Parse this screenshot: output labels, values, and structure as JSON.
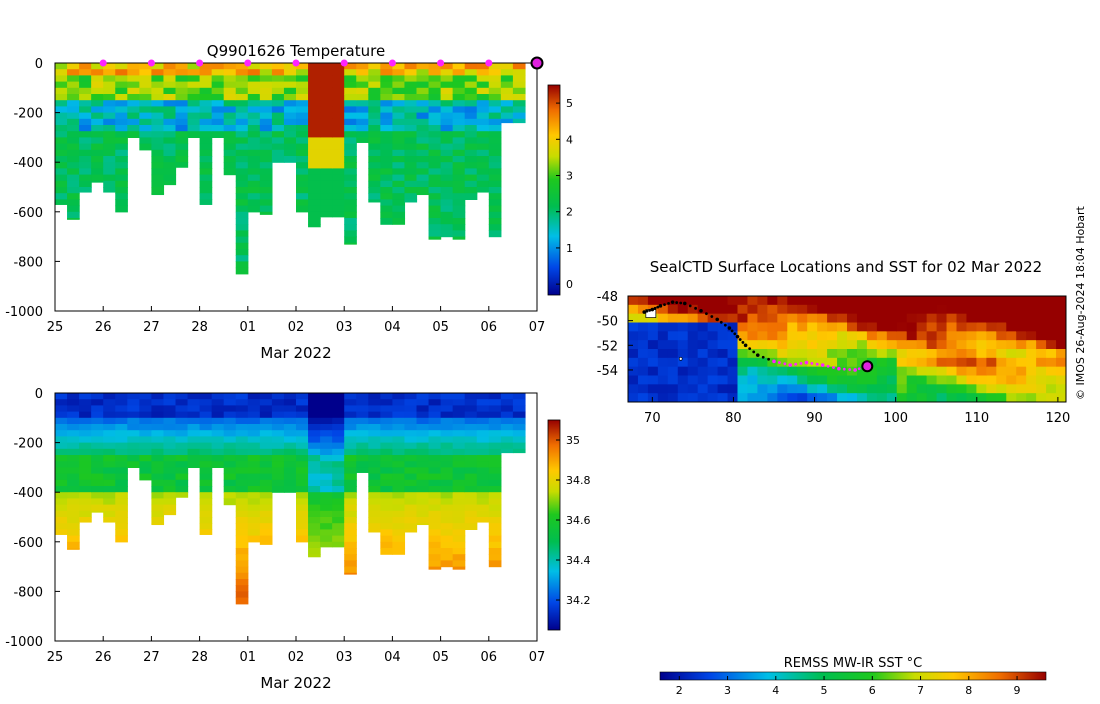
{
  "credit": "© IMOS 26-Aug-2024 18:04 Hobart",
  "chart_data": [
    {
      "type": "heatmap",
      "title": "Q9901626  Temperature",
      "xlabel": "Mar 2022",
      "ylabel": "",
      "x_ticks": [
        "25",
        "26",
        "27",
        "28",
        "01",
        "02",
        "03",
        "04",
        "05",
        "06",
        "07"
      ],
      "y_ticks": [
        "0",
        "-200",
        "-400",
        "-600",
        "-800",
        "-1000"
      ],
      "xlim_days": [
        0,
        10
      ],
      "ylim": [
        -1000,
        0
      ],
      "colorbar": {
        "ticks": [
          "0",
          "1",
          "2",
          "3",
          "4",
          "5"
        ],
        "range": [
          -0.3,
          5.5
        ]
      },
      "profiles": [
        {
          "t": 0.0,
          "bottom": -570
        },
        {
          "t": 0.25,
          "bottom": -630
        },
        {
          "t": 0.5,
          "bottom": -520
        },
        {
          "t": 0.75,
          "bottom": -480
        },
        {
          "t": 1.0,
          "bottom": -520
        },
        {
          "t": 1.25,
          "bottom": -600
        },
        {
          "t": 1.5,
          "bottom": -300
        },
        {
          "t": 1.75,
          "bottom": -350
        },
        {
          "t": 2.0,
          "bottom": -530
        },
        {
          "t": 2.25,
          "bottom": -490
        },
        {
          "t": 2.5,
          "bottom": -420
        },
        {
          "t": 2.75,
          "bottom": -300
        },
        {
          "t": 3.0,
          "bottom": -570
        },
        {
          "t": 3.25,
          "bottom": -300
        },
        {
          "t": 3.5,
          "bottom": -450
        },
        {
          "t": 3.75,
          "bottom": -850
        },
        {
          "t": 4.0,
          "bottom": -600
        },
        {
          "t": 4.25,
          "bottom": -610
        },
        {
          "t": 4.5,
          "bottom": -400
        },
        {
          "t": 4.75,
          "bottom": -400
        },
        {
          "t": 5.0,
          "bottom": -600
        },
        {
          "t": 5.25,
          "bottom": -660
        },
        {
          "t": 5.5,
          "bottom": -620
        },
        {
          "t": 5.75,
          "bottom": -620
        },
        {
          "t": 6.0,
          "bottom": -730
        },
        {
          "t": 6.25,
          "bottom": -320
        },
        {
          "t": 6.5,
          "bottom": -560
        },
        {
          "t": 6.75,
          "bottom": -650
        },
        {
          "t": 7.0,
          "bottom": -650
        },
        {
          "t": 7.25,
          "bottom": -560
        },
        {
          "t": 7.5,
          "bottom": -530
        },
        {
          "t": 7.75,
          "bottom": -710
        },
        {
          "t": 8.0,
          "bottom": -700
        },
        {
          "t": 8.25,
          "bottom": -710
        },
        {
          "t": 8.5,
          "bottom": -550
        },
        {
          "t": 8.75,
          "bottom": -520
        },
        {
          "t": 9.0,
          "bottom": -700
        },
        {
          "t": 9.25,
          "bottom": -240
        },
        {
          "t": 9.5,
          "bottom": -240
        }
      ],
      "daily_markers_days": [
        1,
        2,
        3,
        4,
        5,
        6,
        7,
        8,
        9
      ],
      "current_marker_day": 10
    },
    {
      "type": "heatmap",
      "title": "",
      "xlabel": "Mar 2022",
      "ylabel": "",
      "x_ticks": [
        "25",
        "26",
        "27",
        "28",
        "01",
        "02",
        "03",
        "04",
        "05",
        "06",
        "07"
      ],
      "y_ticks": [
        "0",
        "-200",
        "-400",
        "-600",
        "-800",
        "-1000"
      ],
      "xlim_days": [
        0,
        10
      ],
      "ylim": [
        -1000,
        0
      ],
      "colorbar": {
        "ticks": [
          "34.2",
          "34.4",
          "34.6",
          "34.8",
          "35"
        ],
        "range": [
          34.05,
          35.1
        ]
      }
    },
    {
      "type": "heatmap",
      "title": "SealCTD Surface Locations and SST for 02 Mar 2022",
      "x_ticks": [
        "70",
        "80",
        "90",
        "100",
        "110",
        "120"
      ],
      "y_ticks": [
        "-48",
        "-50",
        "-52",
        "-54"
      ],
      "xlim": [
        67,
        121
      ],
      "ylim": [
        -56.6,
        -48
      ],
      "track_lonlat": [
        [
          69.0,
          -49.3
        ],
        [
          70.0,
          -49.1
        ],
        [
          71.0,
          -48.8
        ],
        [
          72.5,
          -48.5
        ],
        [
          74.0,
          -48.6
        ],
        [
          76.0,
          -49.2
        ],
        [
          78.0,
          -49.9
        ],
        [
          79.5,
          -50.6
        ],
        [
          80.5,
          -51.3
        ],
        [
          81.5,
          -52.0
        ],
        [
          83.0,
          -52.8
        ],
        [
          85.0,
          -53.3
        ],
        [
          87.0,
          -53.6
        ],
        [
          89.0,
          -53.4
        ],
        [
          91.0,
          -53.6
        ],
        [
          93.0,
          -53.9
        ],
        [
          95.0,
          -54.0
        ],
        [
          96.5,
          -53.7
        ]
      ],
      "current_position_lonlat": [
        96.5,
        -53.7
      ],
      "sst_colorbar": {
        "label": "REMSS MW-IR SST °C",
        "ticks": [
          "2",
          "3",
          "4",
          "5",
          "6",
          "7",
          "8",
          "9"
        ],
        "range": [
          1.6,
          9.6
        ]
      }
    }
  ]
}
